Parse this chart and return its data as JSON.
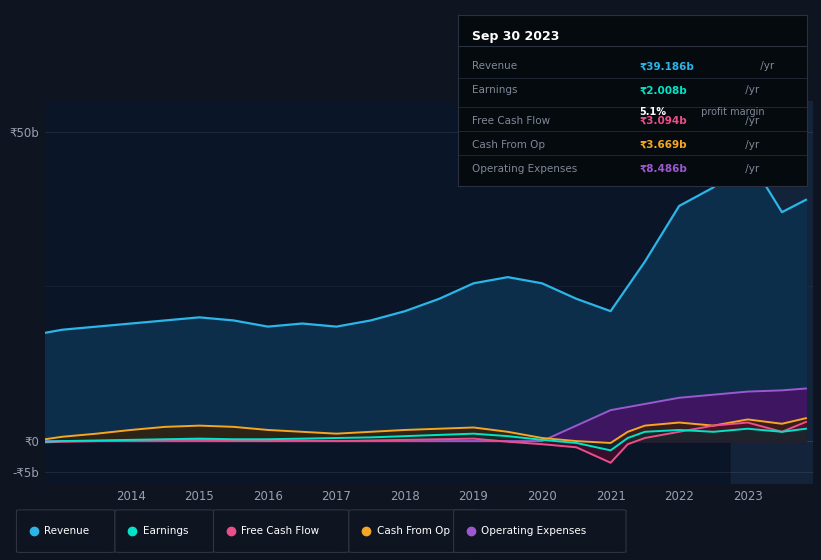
{
  "bg_color": "#0e1420",
  "chart_bg": "#0a1628",
  "years": [
    2012.75,
    2013.0,
    2013.5,
    2014.0,
    2014.5,
    2015.0,
    2015.5,
    2016.0,
    2016.5,
    2017.0,
    2017.5,
    2018.0,
    2018.5,
    2019.0,
    2019.5,
    2020.0,
    2020.5,
    2021.0,
    2021.25,
    2021.5,
    2022.0,
    2022.5,
    2023.0,
    2023.5,
    2023.85
  ],
  "revenue": [
    17.5,
    18.0,
    18.5,
    19.0,
    19.5,
    20.0,
    19.5,
    18.5,
    19.0,
    18.5,
    19.5,
    21.0,
    23.0,
    25.5,
    26.5,
    25.5,
    23.0,
    21.0,
    25.0,
    29.0,
    38.0,
    41.0,
    46.0,
    37.0,
    39.0
  ],
  "earnings": [
    -0.1,
    0.0,
    0.1,
    0.2,
    0.3,
    0.4,
    0.3,
    0.3,
    0.4,
    0.5,
    0.6,
    0.8,
    1.0,
    1.2,
    0.8,
    0.2,
    -0.3,
    -1.5,
    0.5,
    1.5,
    1.8,
    1.5,
    2.0,
    1.5,
    2.0
  ],
  "free_cash_flow": [
    -0.2,
    -0.1,
    0.0,
    0.1,
    0.2,
    0.2,
    0.1,
    0.0,
    0.1,
    0.0,
    0.1,
    0.2,
    0.3,
    0.4,
    -0.1,
    -0.5,
    -1.0,
    -3.5,
    -0.5,
    0.5,
    1.5,
    2.5,
    3.0,
    1.5,
    3.1
  ],
  "cash_from_op": [
    0.3,
    0.7,
    1.2,
    1.8,
    2.3,
    2.5,
    2.3,
    1.8,
    1.5,
    1.2,
    1.5,
    1.8,
    2.0,
    2.2,
    1.5,
    0.5,
    0.0,
    -0.3,
    1.5,
    2.5,
    3.0,
    2.5,
    3.5,
    2.8,
    3.7
  ],
  "operating_expenses": [
    0.0,
    0.0,
    0.0,
    0.0,
    0.0,
    0.0,
    0.0,
    0.0,
    0.0,
    0.0,
    0.0,
    0.0,
    0.0,
    0.0,
    0.0,
    0.0,
    2.5,
    5.0,
    5.5,
    6.0,
    7.0,
    7.5,
    8.0,
    8.2,
    8.5
  ],
  "revenue_color": "#2bb5e8",
  "earnings_color": "#00e5c8",
  "free_cash_flow_color": "#e94f8b",
  "cash_from_op_color": "#f5a623",
  "operating_expenses_color": "#9b59d0",
  "revenue_fill": "#0d2e4a",
  "op_exp_fill": "#3d1560",
  "ylim_top": 55,
  "ylim_bottom": -7,
  "x_ticks": [
    2014,
    2015,
    2016,
    2017,
    2018,
    2019,
    2020,
    2021,
    2022,
    2023
  ],
  "legend_items": [
    "Revenue",
    "Earnings",
    "Free Cash Flow",
    "Cash From Op",
    "Operating Expenses"
  ],
  "legend_colors": [
    "#2bb5e8",
    "#00e5c8",
    "#e94f8b",
    "#f5a623",
    "#9b59d0"
  ],
  "tooltip": {
    "title": "Sep 30 2023",
    "rows": [
      {
        "label": "Revenue",
        "value": "₹39.186b",
        "unit": " /yr",
        "color": "#2bb5e8",
        "sub_bold": null,
        "sub_text": null
      },
      {
        "label": "Earnings",
        "value": "₹2.008b",
        "unit": " /yr",
        "color": "#00e5c8",
        "sub_bold": "5.1%",
        "sub_text": " profit margin"
      },
      {
        "label": "Free Cash Flow",
        "value": "₹3.094b",
        "unit": " /yr",
        "color": "#e94f8b",
        "sub_bold": null,
        "sub_text": null
      },
      {
        "label": "Cash From Op",
        "value": "₹3.669b",
        "unit": " /yr",
        "color": "#f5a623",
        "sub_bold": null,
        "sub_text": null
      },
      {
        "label": "Operating Expenses",
        "value": "₹8.486b",
        "unit": " /yr",
        "color": "#9b59d0",
        "sub_bold": null,
        "sub_text": null
      }
    ]
  }
}
